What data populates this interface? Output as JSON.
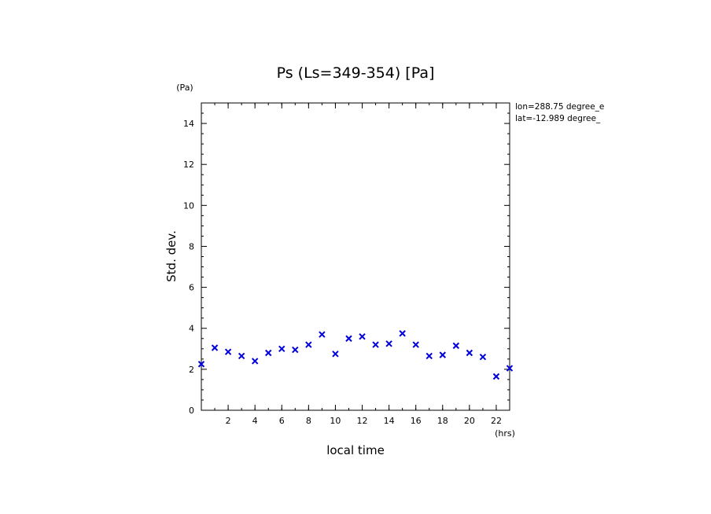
{
  "chart_data": {
    "type": "scatter",
    "title": "Ps (Ls=349-354) [Pa]",
    "xlabel": "local time",
    "ylabel": "Std. dev.",
    "x_unit": "(hrs)",
    "y_unit": "(Pa)",
    "xlim": [
      0,
      23
    ],
    "ylim": [
      0,
      15
    ],
    "x_ticks": [
      2,
      4,
      6,
      8,
      10,
      12,
      14,
      16,
      18,
      20,
      22
    ],
    "y_ticks": [
      0,
      2,
      4,
      6,
      8,
      10,
      12,
      14
    ],
    "annotations": [
      "lon=288.75 degree_e",
      "lat=-12.989 degree_"
    ],
    "marker": "x",
    "marker_color": "#0000dd",
    "grid": false,
    "points": [
      {
        "x": 0.0,
        "y": 2.25
      },
      {
        "x": 1.0,
        "y": 3.05
      },
      {
        "x": 2.0,
        "y": 2.85
      },
      {
        "x": 3.0,
        "y": 2.65
      },
      {
        "x": 4.0,
        "y": 2.4
      },
      {
        "x": 5.0,
        "y": 2.8
      },
      {
        "x": 6.0,
        "y": 3.0
      },
      {
        "x": 7.0,
        "y": 2.95
      },
      {
        "x": 8.0,
        "y": 3.2
      },
      {
        "x": 9.0,
        "y": 3.7
      },
      {
        "x": 10.0,
        "y": 2.75
      },
      {
        "x": 11.0,
        "y": 3.5
      },
      {
        "x": 12.0,
        "y": 3.6
      },
      {
        "x": 13.0,
        "y": 3.2
      },
      {
        "x": 14.0,
        "y": 3.25
      },
      {
        "x": 15.0,
        "y": 3.75
      },
      {
        "x": 16.0,
        "y": 3.2
      },
      {
        "x": 17.0,
        "y": 2.65
      },
      {
        "x": 18.0,
        "y": 2.7
      },
      {
        "x": 19.0,
        "y": 3.15
      },
      {
        "x": 20.0,
        "y": 2.8
      },
      {
        "x": 21.0,
        "y": 2.6
      },
      {
        "x": 22.0,
        "y": 1.65
      },
      {
        "x": 23.0,
        "y": 2.05
      }
    ]
  }
}
